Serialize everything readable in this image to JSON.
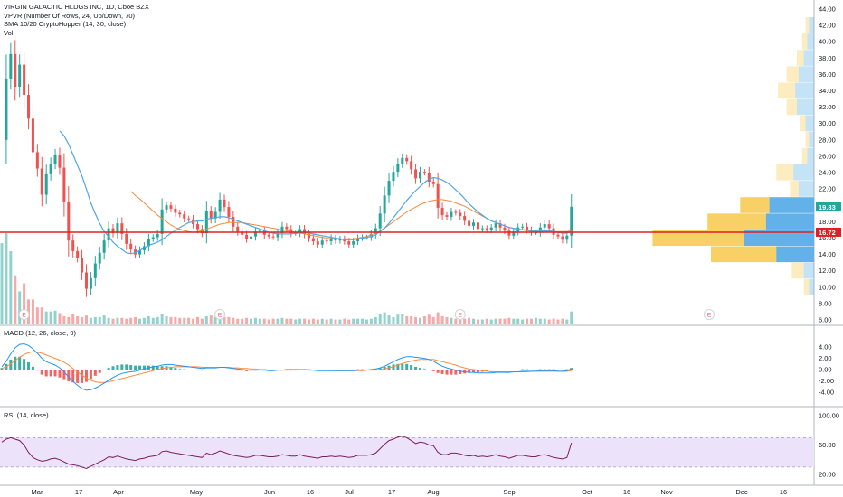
{
  "legend": {
    "main_title": "VIRGIN GALACTIC HLDGS INC, 1D, Cboe BZX",
    "vpvr": "VPVR (Number Of Rows, 24, Up/Down, 70)",
    "sma": "SMA 10/20 CryptoHopper (14, 30, close)",
    "vol": "Vol",
    "macd": "MACD (12, 26, close, 9)",
    "rsi": "RSI (14, close)"
  },
  "price_tags": {
    "last": "19.83",
    "line": "16.72"
  },
  "event_marker_label": "E",
  "colors": {
    "up": "#26a69a",
    "down": "#ef5350",
    "sma_fast": "#4fa6e8",
    "sma_slow": "#f5893b",
    "horizontal_line": "#e02020",
    "vpvr_up": "#5aaee8",
    "vpvr_down": "#f6c94a",
    "macd_line": "#2196f3",
    "signal_line": "#ff8a3d",
    "rsi_line": "#7b1f5a",
    "rsi_band": "#ece3fb"
  },
  "chart_data": [
    {
      "type": "candlestick",
      "title": "VIRGIN GALACTIC HLDGS INC, 1D, Cboe BZX",
      "x_labels": [
        "Mar",
        "17",
        "Apr",
        "May",
        "Jun",
        "16",
        "Jul",
        "17",
        "Aug",
        "Sep",
        "Oct",
        "16",
        "Nov",
        "Dec",
        "16"
      ],
      "y_ticks": [
        "44.00",
        "42.00",
        "40.00",
        "38.00",
        "36.00",
        "34.00",
        "32.00",
        "30.00",
        "28.00",
        "26.00",
        "24.00",
        "22.00",
        "20.00",
        "18.00",
        "16.00",
        "14.00",
        "12.00",
        "10.00",
        "8.00",
        "6.00"
      ],
      "ylim": [
        6,
        44
      ],
      "horizontal_line": 16.72,
      "last_price": 19.83,
      "closes": [
        28.0,
        35.5,
        38.5,
        34.5,
        37.2,
        33.5,
        30.6,
        26.5,
        24.5,
        21.3,
        23.8,
        25.1,
        26.2,
        24.6,
        20.4,
        15.7,
        14.4,
        13.6,
        11.8,
        9.8,
        11.1,
        12.9,
        14.2,
        15.7,
        17.2,
        16.6,
        17.8,
        16.5,
        15.3,
        14.6,
        14.0,
        14.5,
        15.0,
        15.9,
        16.1,
        16.5,
        19.5,
        20.0,
        19.6,
        19.1,
        18.9,
        18.4,
        18.3,
        17.7,
        17.1,
        16.6,
        19.3,
        18.4,
        19.2,
        20.7,
        19.8,
        18.6,
        17.4,
        16.8,
        16.4,
        15.9,
        16.2,
        16.8,
        16.9,
        16.4,
        16.2,
        16.1,
        16.6,
        17.4,
        17.1,
        16.6,
        16.6,
        17.1,
        16.5,
        16.0,
        15.6,
        15.2,
        15.7,
        15.6,
        16.0,
        15.7,
        15.9,
        15.6,
        15.2,
        15.6,
        16.0,
        16.1,
        16.1,
        16.5,
        17.2,
        19.0,
        21.2,
        23.0,
        24.1,
        25.1,
        25.8,
        25.4,
        24.4,
        23.3,
        24.1,
        24.0,
        22.9,
        22.6,
        19.7,
        18.8,
        18.6,
        19.2,
        19.1,
        18.7,
        18.1,
        17.5,
        17.9,
        17.1,
        17.2,
        17.0,
        17.3,
        17.8,
        17.3,
        16.9,
        16.3,
        16.8,
        17.3,
        17.4,
        17.0,
        16.7,
        16.7,
        17.3,
        17.7,
        17.2,
        16.4,
        16.2,
        15.8,
        16.3,
        19.83
      ],
      "opens": [
        27.1,
        28.0,
        35.5,
        38.5,
        34.5,
        37.2,
        33.5,
        30.6,
        26.5,
        24.5,
        21.3,
        23.8,
        25.1,
        26.2,
        24.6,
        20.4,
        15.7,
        14.4,
        13.6,
        11.8,
        9.8,
        11.1,
        12.9,
        14.2,
        15.7,
        17.2,
        16.6,
        17.8,
        16.5,
        15.3,
        14.6,
        14.0,
        14.5,
        15.0,
        15.9,
        16.1,
        16.5,
        19.5,
        20.0,
        19.6,
        19.1,
        18.9,
        18.4,
        18.3,
        17.7,
        17.1,
        16.6,
        19.3,
        18.4,
        19.2,
        20.7,
        19.8,
        18.6,
        17.4,
        16.8,
        16.4,
        15.9,
        16.2,
        16.8,
        16.9,
        16.4,
        16.2,
        16.1,
        16.6,
        17.4,
        17.1,
        16.6,
        16.6,
        17.1,
        16.5,
        16.0,
        15.6,
        15.2,
        15.7,
        15.6,
        16.0,
        15.7,
        15.9,
        15.6,
        15.2,
        15.6,
        16.0,
        16.1,
        16.1,
        16.5,
        17.2,
        19.0,
        21.2,
        23.0,
        24.1,
        25.1,
        25.8,
        25.4,
        24.4,
        23.3,
        24.1,
        24.0,
        22.9,
        22.6,
        19.7,
        18.8,
        18.6,
        19.2,
        19.1,
        18.7,
        18.1,
        17.5,
        17.9,
        17.1,
        17.2,
        17.0,
        17.3,
        17.8,
        17.3,
        16.9,
        16.3,
        16.8,
        17.3,
        17.4,
        17.0,
        16.7,
        16.7,
        17.3,
        17.7,
        17.2,
        16.4,
        16.2,
        15.8,
        16.3
      ],
      "sma_fast": [
        null,
        null,
        null,
        null,
        null,
        null,
        null,
        null,
        null,
        null,
        null,
        null,
        null,
        29.1,
        28.5,
        27.5,
        26.2,
        24.9,
        23.6,
        22.0,
        20.3,
        19.0,
        17.8,
        16.8,
        16.2,
        15.5,
        15.0,
        14.6,
        14.2,
        14.1,
        14.2,
        14.5,
        14.8,
        15.1,
        15.3,
        15.5,
        15.8,
        16.2,
        16.6,
        16.9,
        17.3,
        17.6,
        17.9,
        18.0,
        18.1,
        18.1,
        18.3,
        18.4,
        18.5,
        18.6,
        18.6,
        18.5,
        18.3,
        18.1,
        17.9,
        17.7,
        17.5,
        17.3,
        17.1,
        16.9,
        16.7,
        16.6,
        16.5,
        16.5,
        16.5,
        16.5,
        16.6,
        16.6,
        16.7,
        16.6,
        16.5,
        16.4,
        16.3,
        16.2,
        16.1,
        16.0,
        15.9,
        15.8,
        15.8,
        15.8,
        15.9,
        16.0,
        16.1,
        16.2,
        16.4,
        16.8,
        17.2,
        17.8,
        18.5,
        19.2,
        19.9,
        20.6,
        21.2,
        21.8,
        22.3,
        22.8,
        23.2,
        23.4,
        23.3,
        23.1,
        22.8,
        22.4,
        21.9,
        21.4,
        20.8,
        20.2,
        19.7,
        19.2,
        18.8,
        18.4,
        18.1,
        17.9,
        17.7,
        17.5,
        17.3,
        17.2,
        17.1,
        17.0,
        17.0,
        16.9,
        16.9,
        16.9,
        16.9,
        16.9,
        16.8,
        16.7,
        16.6,
        16.6,
        16.8
      ],
      "sma_slow": [
        null,
        null,
        null,
        null,
        null,
        null,
        null,
        null,
        null,
        null,
        null,
        null,
        null,
        null,
        null,
        null,
        null,
        null,
        null,
        null,
        null,
        null,
        null,
        null,
        null,
        null,
        null,
        null,
        null,
        21.7,
        21.2,
        20.8,
        20.3,
        19.8,
        19.3,
        18.8,
        18.4,
        18.0,
        17.6,
        17.3,
        17.1,
        16.9,
        16.8,
        16.7,
        16.8,
        16.9,
        17.1,
        17.3,
        17.5,
        17.7,
        17.8,
        17.9,
        17.9,
        17.9,
        17.9,
        17.8,
        17.7,
        17.6,
        17.5,
        17.4,
        17.3,
        17.2,
        17.1,
        17.0,
        16.9,
        16.8,
        16.7,
        16.6,
        16.5,
        16.4,
        16.3,
        16.2,
        16.1,
        16.0,
        15.9,
        15.9,
        15.9,
        15.9,
        15.9,
        15.9,
        16.0,
        16.1,
        16.2,
        16.4,
        16.6,
        16.9,
        17.2,
        17.6,
        18.0,
        18.4,
        18.8,
        19.2,
        19.5,
        19.8,
        20.1,
        20.3,
        20.5,
        20.6,
        20.7,
        20.7,
        20.6,
        20.5,
        20.3,
        20.1,
        19.9,
        19.6,
        19.3,
        19.0,
        18.7,
        18.4,
        18.1,
        17.9,
        17.7,
        17.5,
        17.3,
        17.2,
        17.1,
        17.0,
        16.9,
        16.8,
        16.8,
        16.8,
        16.8,
        16.8,
        16.8,
        16.8,
        16.8,
        16.8,
        16.9
      ],
      "volume": [
        10,
        18,
        9,
        6,
        4,
        5,
        3,
        3,
        2,
        2,
        1.5,
        1.5,
        1.6,
        1.3,
        0.9,
        0.8,
        1.2,
        0.9,
        0.8,
        1.0,
        0.7,
        0.8,
        0.8,
        1.0,
        0.7,
        0.6,
        0.7,
        0.7,
        0.6,
        0.7,
        0.8,
        0.6,
        0.7,
        0.9,
        0.7,
        0.8,
        1.2,
        0.9,
        0.8,
        0.8,
        0.7,
        0.7,
        0.7,
        0.6,
        0.8,
        0.6,
        0.9,
        1.0,
        0.8,
        1.1,
        0.8,
        0.8,
        0.7,
        0.6,
        0.6,
        0.7,
        0.6,
        0.7,
        0.6,
        0.6,
        0.5,
        0.6,
        0.6,
        0.7,
        0.6,
        0.6,
        0.5,
        0.6,
        0.6,
        0.5,
        0.6,
        0.5,
        0.6,
        0.5,
        0.6,
        0.5,
        0.5,
        0.6,
        0.5,
        0.6,
        0.6,
        0.6,
        0.5,
        0.6,
        0.8,
        1.2,
        1.4,
        1.0,
        0.8,
        1.1,
        1.2,
        0.9,
        0.9,
        0.8,
        0.7,
        0.9,
        1.1,
        0.8,
        1.4,
        0.9,
        0.8,
        0.7,
        0.6,
        0.6,
        0.6,
        0.7,
        0.6,
        0.5,
        0.5,
        0.6,
        0.5,
        0.6,
        0.6,
        0.6,
        0.7,
        0.6,
        0.6,
        0.5,
        0.6,
        0.6,
        0.7,
        0.6,
        0.6,
        0.5,
        0.6,
        0.5,
        0.6,
        0.5,
        1.5
      ],
      "event_markers_index": [
        5,
        49,
        103
      ],
      "event_marker_future": "Nov",
      "vpvr_profile": [
        {
          "price": 42,
          "up": 0.03,
          "down": 0.02
        },
        {
          "price": 40,
          "up": 0.04,
          "down": 0.03
        },
        {
          "price": 38,
          "up": 0.06,
          "down": 0.04
        },
        {
          "price": 36,
          "up": 0.09,
          "down": 0.07
        },
        {
          "price": 34,
          "up": 0.11,
          "down": 0.1
        },
        {
          "price": 32,
          "up": 0.1,
          "down": 0.06
        },
        {
          "price": 30,
          "up": 0.05,
          "down": 0.03
        },
        {
          "price": 28,
          "up": 0.03,
          "down": 0.02
        },
        {
          "price": 26,
          "up": 0.04,
          "down": 0.03
        },
        {
          "price": 24,
          "up": 0.12,
          "down": 0.1
        },
        {
          "price": 22,
          "up": 0.09,
          "down": 0.05
        },
        {
          "price": 20,
          "up": 0.26,
          "down": 0.17
        },
        {
          "price": 18,
          "up": 0.28,
          "down": 0.34
        },
        {
          "price": 16,
          "up": 0.41,
          "down": 0.53
        },
        {
          "price": 14,
          "up": 0.22,
          "down": 0.38
        },
        {
          "price": 12,
          "up": 0.06,
          "down": 0.07
        },
        {
          "price": 10,
          "up": 0.03,
          "down": 0.03
        }
      ]
    },
    {
      "type": "line",
      "title": "MACD (12, 26, close, 9)",
      "y_ticks": [
        "4.00",
        "2.00",
        "0.00",
        "-2.00",
        "-4.00"
      ],
      "ylim": [
        -6,
        6
      ],
      "series": [
        {
          "name": "MACD",
          "values": [
            0.5,
            1.5,
            2.8,
            3.9,
            4.5,
            4.6,
            4.3,
            3.7,
            2.9,
            2.0,
            1.4,
            1.1,
            0.8,
            0.3,
            -0.4,
            -1.3,
            -2.1,
            -2.8,
            -3.4,
            -3.7,
            -3.6,
            -3.3,
            -2.9,
            -2.4,
            -1.9,
            -1.4,
            -1.0,
            -0.7,
            -0.5,
            -0.4,
            -0.3,
            -0.1,
            0.1,
            0.3,
            0.5,
            0.6,
            0.8,
            0.9,
            0.9,
            0.8,
            0.7,
            0.6,
            0.5,
            0.4,
            0.3,
            0.2,
            0.3,
            0.3,
            0.3,
            0.4,
            0.4,
            0.3,
            0.2,
            0.1,
            0.0,
            -0.1,
            -0.1,
            -0.1,
            -0.1,
            -0.1,
            -0.2,
            -0.2,
            -0.1,
            -0.1,
            0.0,
            0.0,
            0.0,
            0.0,
            0.0,
            -0.1,
            -0.1,
            -0.2,
            -0.2,
            -0.2,
            -0.2,
            -0.2,
            -0.2,
            -0.2,
            -0.2,
            -0.2,
            -0.1,
            -0.1,
            -0.1,
            0.0,
            0.1,
            0.3,
            0.6,
            1.0,
            1.4,
            1.8,
            2.1,
            2.3,
            2.3,
            2.2,
            2.1,
            2.0,
            1.8,
            1.5,
            1.0,
            0.6,
            0.3,
            0.1,
            -0.1,
            -0.3,
            -0.4,
            -0.5,
            -0.5,
            -0.6,
            -0.6,
            -0.6,
            -0.6,
            -0.5,
            -0.5,
            -0.5,
            -0.5,
            -0.4,
            -0.4,
            -0.3,
            -0.3,
            -0.3,
            -0.3,
            -0.2,
            -0.2,
            -0.2,
            -0.2,
            -0.3,
            -0.3,
            -0.2,
            0.1
          ]
        },
        {
          "name": "Signal",
          "values": [
            0.2,
            0.5,
            1.0,
            1.6,
            2.2,
            2.7,
            3.0,
            3.2,
            3.1,
            2.9,
            2.6,
            2.3,
            2.0,
            1.7,
            1.3,
            0.8,
            0.2,
            -0.4,
            -1.0,
            -1.5,
            -1.9,
            -2.2,
            -2.3,
            -2.3,
            -2.2,
            -2.0,
            -1.8,
            -1.6,
            -1.4,
            -1.2,
            -1.0,
            -0.8,
            -0.6,
            -0.4,
            -0.2,
            0.0,
            0.2,
            0.3,
            0.4,
            0.5,
            0.5,
            0.5,
            0.5,
            0.5,
            0.5,
            0.4,
            0.4,
            0.4,
            0.4,
            0.4,
            0.4,
            0.4,
            0.3,
            0.3,
            0.2,
            0.2,
            0.1,
            0.1,
            0.0,
            0.0,
            -0.1,
            -0.1,
            -0.1,
            -0.1,
            -0.1,
            -0.1,
            -0.1,
            0.0,
            0.0,
            0.0,
            -0.1,
            -0.1,
            -0.1,
            -0.1,
            -0.1,
            -0.2,
            -0.2,
            -0.2,
            -0.2,
            -0.2,
            -0.2,
            -0.2,
            -0.1,
            -0.1,
            -0.1,
            0.0,
            0.1,
            0.3,
            0.5,
            0.8,
            1.1,
            1.3,
            1.5,
            1.7,
            1.8,
            1.8,
            1.8,
            1.8,
            1.6,
            1.4,
            1.2,
            1.0,
            0.8,
            0.5,
            0.3,
            0.1,
            0.0,
            -0.1,
            -0.2,
            -0.3,
            -0.4,
            -0.4,
            -0.4,
            -0.4,
            -0.4,
            -0.4,
            -0.4,
            -0.4,
            -0.4,
            -0.3,
            -0.3,
            -0.3,
            -0.3,
            -0.3,
            -0.3,
            -0.3,
            -0.3,
            -0.3,
            -0.2
          ]
        }
      ]
    },
    {
      "type": "line",
      "title": "RSI (14, close)",
      "y_ticks": [
        "100.00",
        "60.00",
        "20.00"
      ],
      "ylim": [
        10,
        105
      ],
      "band": [
        30,
        70
      ],
      "values": [
        64,
        68,
        70,
        68,
        66,
        60,
        50,
        43,
        40,
        38,
        39,
        41,
        42,
        40,
        37,
        34,
        33,
        32,
        30,
        28,
        31,
        34,
        37,
        40,
        44,
        43,
        45,
        43,
        41,
        40,
        39,
        41,
        42,
        44,
        45,
        46,
        51,
        52,
        50,
        49,
        48,
        47,
        46,
        45,
        44,
        43,
        49,
        47,
        49,
        52,
        50,
        48,
        46,
        45,
        44,
        43,
        44,
        46,
        46,
        45,
        44,
        44,
        45,
        47,
        46,
        45,
        45,
        47,
        45,
        44,
        43,
        42,
        44,
        44,
        45,
        44,
        45,
        44,
        43,
        44,
        46,
        46,
        46,
        47,
        49,
        55,
        61,
        66,
        68,
        71,
        72,
        70,
        66,
        62,
        64,
        63,
        60,
        59,
        50,
        47,
        47,
        49,
        49,
        48,
        46,
        45,
        46,
        44,
        45,
        44,
        45,
        47,
        45,
        44,
        42,
        44,
        46,
        46,
        45,
        44,
        44,
        46,
        47,
        45,
        43,
        42,
        41,
        43,
        63
      ]
    }
  ]
}
